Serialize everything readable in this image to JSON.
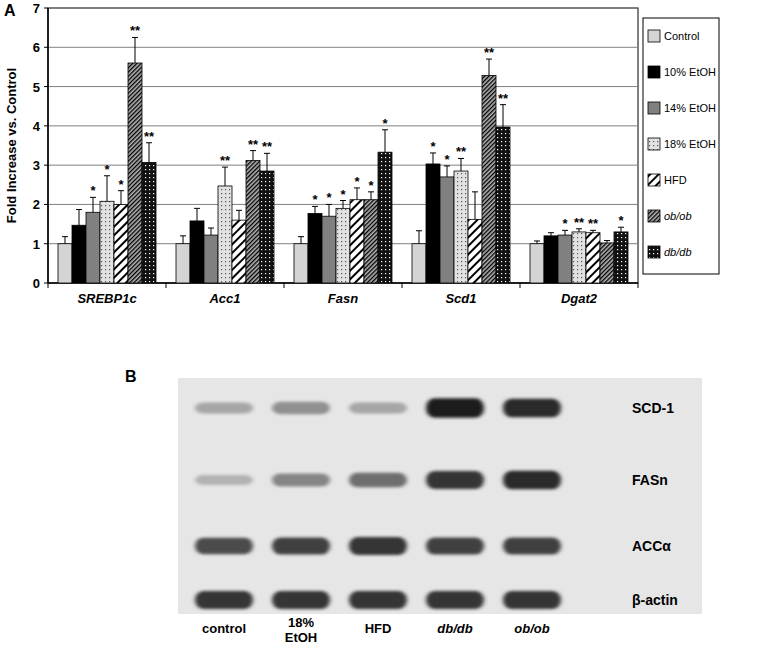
{
  "chart_data": {
    "type": "bar",
    "panel_label": "A",
    "y_label": "Fold Increase vs. Control",
    "categories": [
      "SREBP1c",
      "Acc1",
      "Fasn",
      "Scd1",
      "Dgat2"
    ],
    "ylim": [
      0,
      7
    ],
    "yticks": [
      0,
      1,
      2,
      3,
      4,
      5,
      6,
      7
    ],
    "grid": true,
    "legend": "right",
    "series": [
      {
        "name": "Control",
        "color": "#d4d4d4",
        "values": [
          1.0,
          1.0,
          1.0,
          1.0,
          1.0
        ],
        "errors": [
          0.18,
          0.2,
          0.18,
          0.33,
          0.07
        ],
        "significance": [
          null,
          null,
          null,
          null,
          null
        ]
      },
      {
        "name": "10% EtOH",
        "color": "#000000",
        "values": [
          1.47,
          1.58,
          1.77,
          3.03,
          1.2
        ],
        "errors": [
          0.4,
          0.32,
          0.18,
          0.28,
          0.08
        ],
        "significance": [
          null,
          null,
          "*",
          "*",
          null
        ]
      },
      {
        "name": "14% EtOH",
        "color": "#808080",
        "values": [
          1.8,
          1.22,
          1.7,
          2.7,
          1.22
        ],
        "errors": [
          0.38,
          0.18,
          0.3,
          0.28,
          0.12
        ],
        "significance": [
          "*",
          null,
          "*",
          "*",
          "*"
        ]
      },
      {
        "name": "18% EtOH",
        "color": "#e2e2e2",
        "values": [
          2.08,
          2.47,
          1.9,
          2.85,
          1.3
        ],
        "errors": [
          0.65,
          0.48,
          0.2,
          0.32,
          0.08
        ],
        "significance": [
          "*",
          "**",
          "*",
          "**",
          "**"
        ]
      },
      {
        "name": "HFD",
        "color": "#ffffff",
        "values": [
          2.0,
          1.6,
          2.12,
          1.62,
          1.28
        ],
        "errors": [
          0.35,
          0.25,
          0.3,
          0.7,
          0.06
        ],
        "significance": [
          "*",
          null,
          "*",
          null,
          "**"
        ]
      },
      {
        "name": "ob/ob",
        "color": "#b0b0b0",
        "values": [
          5.6,
          3.12,
          2.12,
          5.28,
          1.02
        ],
        "errors": [
          0.65,
          0.25,
          0.2,
          0.42,
          0.06
        ],
        "significance": [
          "**",
          "**",
          "*",
          "**",
          null
        ]
      },
      {
        "name": "db/db",
        "color": "#111111",
        "values": [
          3.07,
          2.85,
          3.33,
          3.97,
          1.3
        ],
        "errors": [
          0.5,
          0.45,
          0.57,
          0.57,
          0.12
        ],
        "significance": [
          "**",
          "**",
          "*",
          "**",
          "*"
        ]
      }
    ]
  },
  "blot": {
    "panel_label": "B",
    "lanes": [
      "control",
      "18% EtOH",
      "HFD",
      "db/db",
      "ob/ob"
    ],
    "rows": [
      {
        "label": "SCD-1",
        "band_intensity": [
          0.35,
          0.45,
          0.35,
          0.95,
          0.9
        ]
      },
      {
        "label": "FASn",
        "band_intensity": [
          0.3,
          0.5,
          0.6,
          0.85,
          0.9
        ]
      },
      {
        "label": "ACCα",
        "band_intensity": [
          0.75,
          0.8,
          0.85,
          0.8,
          0.8
        ]
      },
      {
        "label": "β-actin",
        "band_intensity": [
          0.85,
          0.85,
          0.85,
          0.85,
          0.85
        ]
      }
    ]
  }
}
